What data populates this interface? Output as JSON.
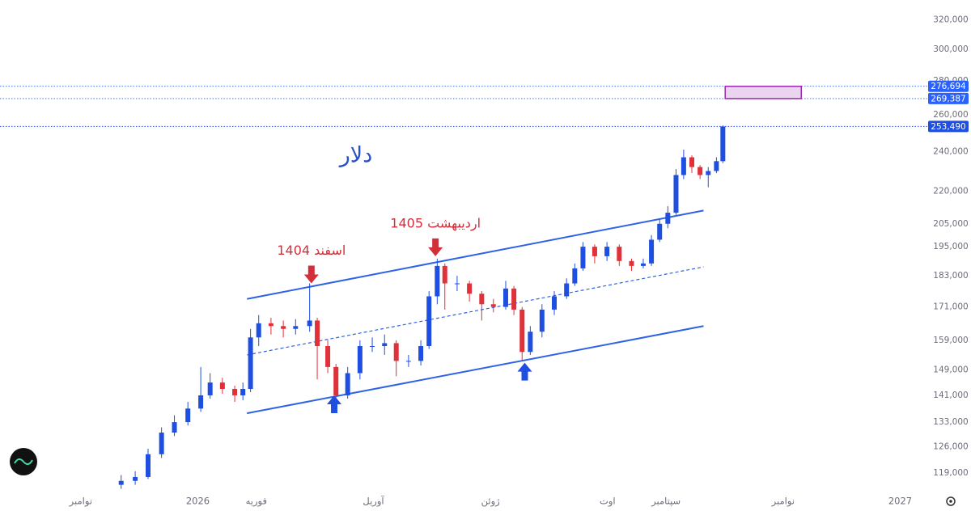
{
  "chart_data": {
    "type": "candlestick",
    "title": "دلار",
    "title_color": "#2a4fc9",
    "log_scale": true,
    "up_color": "#1f4fe0",
    "down_color": "#e0303a",
    "x": [
      0.69,
      0.93,
      1.15,
      1.38,
      1.6,
      1.83,
      2.05,
      2.21,
      2.42,
      2.63,
      2.77,
      2.9,
      3.04,
      3.25,
      3.46,
      3.67,
      3.91,
      4.04,
      4.22,
      4.36,
      4.56,
      4.77,
      4.98,
      5.19,
      5.39,
      5.6,
      5.81,
      5.95,
      6.09,
      6.22,
      6.43,
      6.64,
      6.85,
      7.05,
      7.26,
      7.4,
      7.54,
      7.68,
      7.88,
      8.09,
      8.3,
      8.44,
      8.58,
      8.78,
      8.99,
      9.2,
      9.41,
      9.61,
      9.75,
      9.89,
      10.03,
      10.17,
      10.3,
      10.44,
      10.58,
      10.72,
      10.86,
      10.97
    ],
    "open": [
      116000,
      117000,
      118000,
      124000,
      130000,
      133000,
      137000,
      141000,
      145000,
      143000,
      141000,
      143000,
      160000,
      165000,
      164000,
      163000,
      164000,
      166000,
      157000,
      150000,
      141000,
      148000,
      157000,
      157000,
      158000,
      152000,
      152000,
      157000,
      175000,
      187000,
      180000,
      180000,
      176000,
      172000,
      171000,
      178000,
      170000,
      155000,
      162000,
      170000,
      175000,
      180000,
      186000,
      195000,
      191000,
      195000,
      189000,
      187000,
      188000,
      198000,
      205000,
      210000,
      228000,
      237000,
      232000,
      228000,
      230000,
      235000
    ],
    "high": [
      118500,
      119500,
      125500,
      131500,
      135000,
      139000,
      150000,
      148000,
      146500,
      144000,
      145000,
      163000,
      168000,
      167000,
      166000,
      166500,
      180000,
      167000,
      159000,
      151000,
      150000,
      159000,
      160000,
      161000,
      159000,
      154000,
      159000,
      177000,
      190000,
      188000,
      183000,
      181000,
      177000,
      174000,
      181000,
      179000,
      171000,
      164000,
      172000,
      177000,
      182000,
      188000,
      197000,
      196000,
      197000,
      196000,
      190000,
      190000,
      200000,
      207000,
      213000,
      231000,
      241000,
      238000,
      233000,
      232000,
      237000,
      254000
    ],
    "low": [
      115000,
      116000,
      117500,
      123000,
      129000,
      132000,
      136000,
      140000,
      141500,
      139000,
      139500,
      142000,
      157000,
      161000,
      160000,
      161000,
      162000,
      146000,
      148000,
      139500,
      140000,
      146000,
      155000,
      154000,
      147000,
      150000,
      150500,
      156000,
      172000,
      170000,
      177000,
      173000,
      166000,
      169000,
      170000,
      168000,
      152000,
      154000,
      160000,
      168000,
      174000,
      179000,
      185000,
      188000,
      189000,
      187000,
      185000,
      186000,
      187000,
      197000,
      203000,
      209000,
      226000,
      229000,
      226000,
      222000,
      229000,
      234000
    ],
    "close": [
      117000,
      118000,
      124000,
      130000,
      133000,
      137000,
      141000,
      145000,
      143000,
      141000,
      143000,
      160000,
      165000,
      164000,
      163000,
      164000,
      166000,
      157000,
      150000,
      141000,
      148000,
      157000,
      157000,
      158000,
      152000,
      152000,
      157000,
      175000,
      187000,
      180000,
      180000,
      176000,
      172000,
      171000,
      178000,
      170000,
      155000,
      162000,
      170000,
      175000,
      180000,
      186000,
      195000,
      191000,
      195000,
      189000,
      187000,
      188000,
      198000,
      205000,
      210000,
      228000,
      237000,
      232000,
      228000,
      230000,
      235000,
      253490
    ],
    "xlim": [
      -1.38,
      14.38
    ],
    "xticks": [
      {
        "value": 0,
        "label": "نوامبر"
      },
      {
        "value": 2,
        "label": "2026"
      },
      {
        "value": 3,
        "label": "فوریه"
      },
      {
        "value": 5,
        "label": "آوریل"
      },
      {
        "value": 7,
        "label": "ژوئن"
      },
      {
        "value": 9,
        "label": "اوت"
      },
      {
        "value": 10,
        "label": "سپتامبر"
      },
      {
        "value": 12,
        "label": "نوامبر"
      },
      {
        "value": 14,
        "label": "2027"
      }
    ],
    "ylim": [
      114300,
      334000
    ],
    "yticks": [
      {
        "value": 119000,
        "label": "119,000"
      },
      {
        "value": 126000,
        "label": "126,000"
      },
      {
        "value": 133000,
        "label": "133,000"
      },
      {
        "value": 141000,
        "label": "141,000"
      },
      {
        "value": 149000,
        "label": "149,000"
      },
      {
        "value": 159000,
        "label": "159,000"
      },
      {
        "value": 171000,
        "label": "171,000"
      },
      {
        "value": 183000,
        "label": "183,000"
      },
      {
        "value": 195000,
        "label": "195,000"
      },
      {
        "value": 205000,
        "label": "205,000"
      },
      {
        "value": 220000,
        "label": "220,000"
      },
      {
        "value": 240000,
        "label": "240,000"
      },
      {
        "value": 260000,
        "label": "260,000"
      },
      {
        "value": 280000,
        "label": "280,000"
      },
      {
        "value": 300000,
        "label": "300,000"
      },
      {
        "value": 320000,
        "label": "320,000"
      }
    ],
    "price_lines": [
      {
        "value": 276694,
        "label": "276,694",
        "color": "#2962ff"
      },
      {
        "value": 269387,
        "label": "269,387",
        "color": "#2962ff"
      },
      {
        "value": 253490,
        "label": "253,490",
        "color": "#1f4fe0"
      }
    ],
    "channel": {
      "color": "#2e63e6",
      "lines": [
        {
          "x": [
            2.84,
            10.64
          ],
          "y": [
            174000,
            211000
          ],
          "dashed": false
        },
        {
          "x": [
            2.84,
            10.64
          ],
          "y": [
            154000,
            186600
          ],
          "dashed": true
        },
        {
          "x": [
            2.84,
            10.64
          ],
          "y": [
            135600,
            164000
          ],
          "dashed": false
        }
      ]
    },
    "zone": {
      "x": [
        11.01,
        12.31
      ],
      "y": [
        269387,
        276694
      ],
      "color": "#9c27b0"
    },
    "annotations": [
      {
        "text": "اسفند 1404",
        "x": 3.94,
        "y": 180000,
        "direction": "down",
        "color": "#d32f3a"
      },
      {
        "text": "اردیبهشت 1405",
        "x": 6.06,
        "y": 191000,
        "direction": "down",
        "color": "#d32f3a"
      },
      {
        "x": 4.33,
        "y": 141000,
        "direction": "up",
        "color": "#1f4fe0"
      },
      {
        "x": 7.585,
        "y": 151400,
        "direction": "up",
        "color": "#1f4fe0"
      }
    ]
  }
}
